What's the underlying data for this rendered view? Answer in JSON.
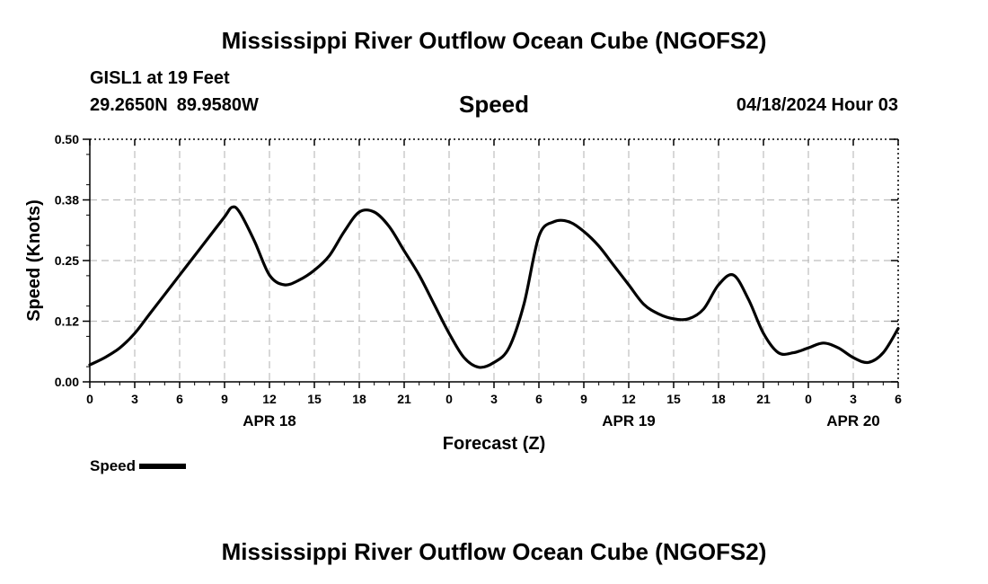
{
  "header": {
    "title": "Mississippi River Outflow Ocean Cube (NGOFS2)",
    "station": "GISL1 at 19 Feet",
    "latitude": "29.2650N",
    "longitude": "89.9580W",
    "variable": "Speed",
    "datetime": "04/18/2024 Hour 03"
  },
  "footer": {
    "title": "Mississippi River Outflow Ocean Cube (NGOFS2)"
  },
  "chart_data": {
    "type": "line",
    "xlabel": "Forecast (Z)",
    "ylabel": "Speed (Knots)",
    "xlim": [
      0,
      54
    ],
    "ylim": [
      0,
      0.5
    ],
    "y_ticks": [
      "0.00",
      "0.12",
      "0.25",
      "0.38",
      "0.50"
    ],
    "x_tick_labels": [
      "0",
      "3",
      "6",
      "9",
      "12",
      "15",
      "18",
      "21",
      "0",
      "3",
      "6",
      "9",
      "12",
      "15",
      "18",
      "21",
      "0",
      "3",
      "6"
    ],
    "day_labels": [
      {
        "label": "APR 18",
        "at": 12
      },
      {
        "label": "APR 19",
        "at": 36
      },
      {
        "label": "APR 20",
        "at": 51
      }
    ],
    "grid": true,
    "series": [
      {
        "name": "Speed",
        "color": "#000000",
        "x": [
          0,
          1,
          2,
          3,
          4,
          5,
          6,
          7,
          8,
          9,
          9.5,
          10,
          11,
          12,
          13,
          14,
          15,
          16,
          17,
          18,
          19,
          20,
          21,
          22,
          23,
          24,
          25,
          26,
          27,
          28,
          29,
          30,
          31,
          32,
          33,
          34,
          35,
          36,
          37,
          38,
          39,
          40,
          41,
          42,
          43,
          44,
          45,
          46,
          47,
          48,
          49,
          50,
          51,
          52,
          53,
          54
        ],
        "values": [
          0.035,
          0.05,
          0.07,
          0.1,
          0.14,
          0.18,
          0.22,
          0.26,
          0.3,
          0.34,
          0.36,
          0.35,
          0.29,
          0.22,
          0.2,
          0.21,
          0.23,
          0.26,
          0.31,
          0.35,
          0.35,
          0.32,
          0.27,
          0.22,
          0.16,
          0.1,
          0.05,
          0.03,
          0.04,
          0.07,
          0.16,
          0.3,
          0.33,
          0.33,
          0.31,
          0.28,
          0.24,
          0.2,
          0.16,
          0.14,
          0.13,
          0.13,
          0.15,
          0.2,
          0.22,
          0.17,
          0.1,
          0.06,
          0.06,
          0.07,
          0.08,
          0.07,
          0.05,
          0.04,
          0.06,
          0.11
        ]
      }
    ],
    "legend": {
      "label": "Speed",
      "position": "bottom-left"
    }
  }
}
